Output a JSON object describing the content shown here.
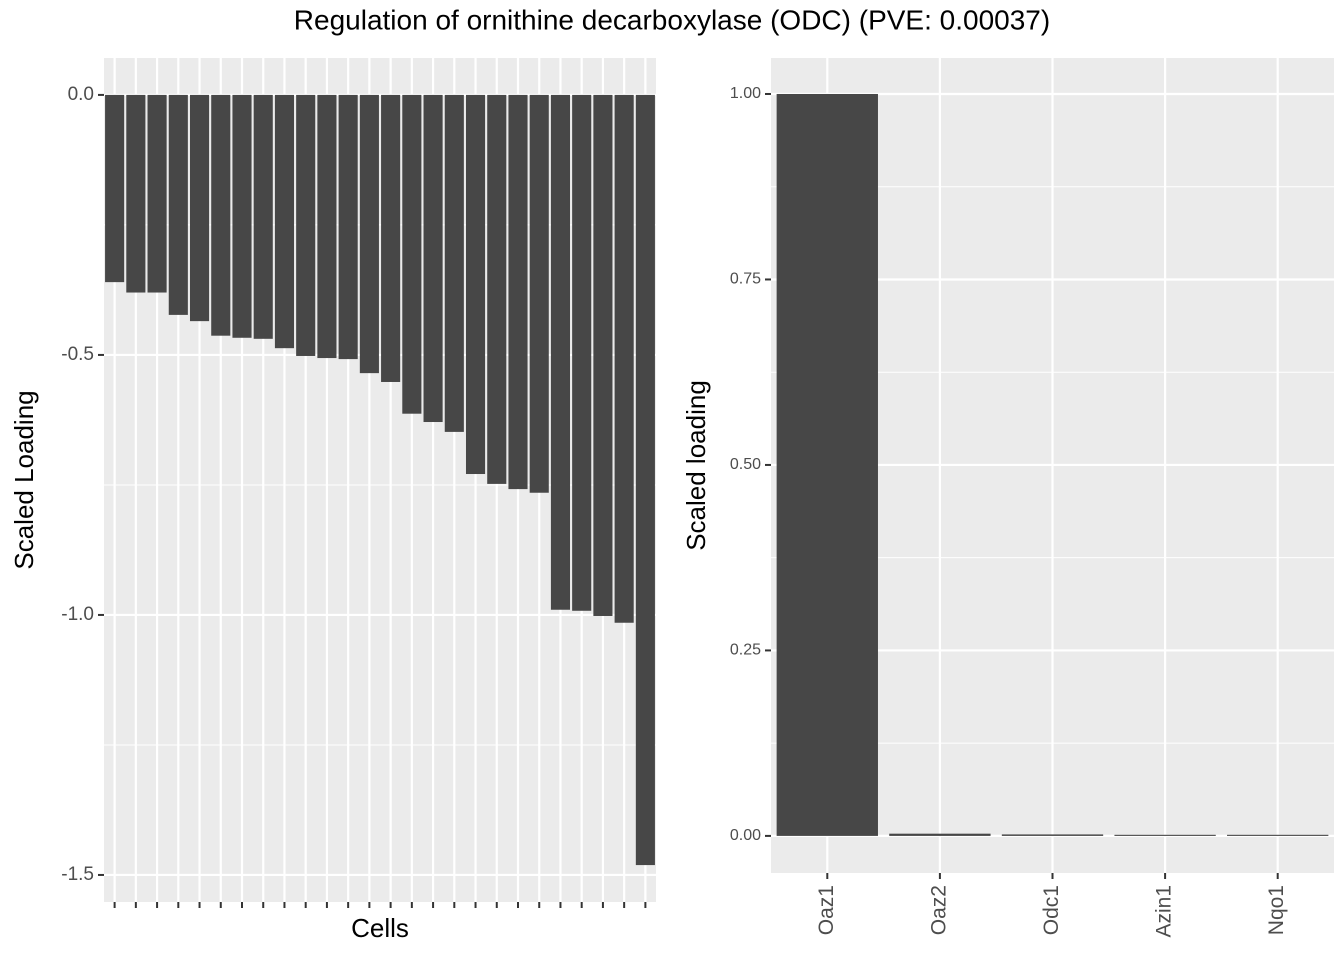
{
  "title": "Regulation of ornithine decarboxylase (ODC) (PVE: 0.00037)",
  "chart_data": [
    {
      "type": "bar",
      "x_label": "Cells",
      "y_label": "Scaled Loading",
      "categories": [
        null,
        null,
        null,
        null,
        null,
        null,
        null,
        null,
        null,
        null,
        null,
        null,
        null,
        null,
        null,
        null,
        null,
        null,
        null,
        null,
        null,
        null,
        null,
        null,
        null,
        null
      ],
      "values": [
        -0.36,
        -0.38,
        -0.38,
        -0.423,
        -0.435,
        -0.463,
        -0.467,
        -0.469,
        -0.487,
        -0.502,
        -0.506,
        -0.508,
        -0.535,
        -0.552,
        -0.613,
        -0.629,
        -0.648,
        -0.729,
        -0.748,
        -0.758,
        -0.765,
        -0.99,
        -0.992,
        -1.002,
        -1.015,
        -1.481
      ],
      "color": "#474747",
      "ylim": [
        -1.552,
        0.071
      ],
      "yticks": [
        {
          "value": 0,
          "label": "0.0"
        },
        -0.5,
        {
          "value": -1,
          "label": "-1.0"
        },
        -1.5
      ],
      "grid": true
    },
    {
      "type": "bar",
      "y_label": "Scaled loading",
      "categories": [
        "Oaz1",
        "Oaz2",
        "Odc1",
        "Azin1",
        "Nqo1"
      ],
      "values": [
        1,
        0.003,
        0.002,
        0.0015,
        0.0015
      ],
      "color": "#474747",
      "ylim": [
        -0.05,
        1.0485
      ],
      "yticks": [
        {
          "value": 0,
          "label": "0.00"
        },
        {
          "value": 0.25,
          "label": "0.25"
        },
        {
          "value": 0.5,
          "label": "0.50"
        },
        {
          "value": 0.75,
          "label": "0.75"
        },
        {
          "value": 1,
          "label": "1.00"
        }
      ],
      "grid": true
    }
  ]
}
